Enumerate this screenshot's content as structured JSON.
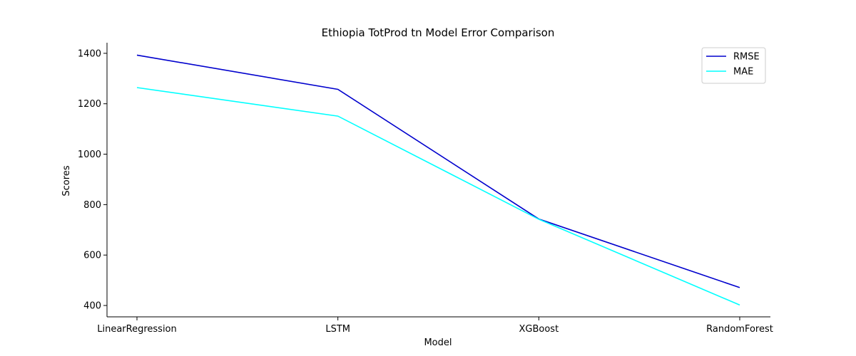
{
  "chart_data": {
    "type": "line",
    "title": "Ethiopia TotProd tn Model Error Comparison",
    "xlabel": "Model",
    "ylabel": "Scores",
    "categories": [
      "LinearRegression",
      "LSTM",
      "XGBoost",
      "RandomForest"
    ],
    "series": [
      {
        "name": "RMSE",
        "values": [
          1393,
          1257,
          743,
          471
        ],
        "color": "#0000cd"
      },
      {
        "name": "MAE",
        "values": [
          1264,
          1151,
          742,
          402
        ],
        "color": "#00ffff"
      }
    ],
    "ylim": [
      355,
      1442
    ],
    "yticks": [
      400,
      600,
      800,
      1000,
      1200,
      1400
    ],
    "grid": false,
    "legend": "upper right"
  }
}
